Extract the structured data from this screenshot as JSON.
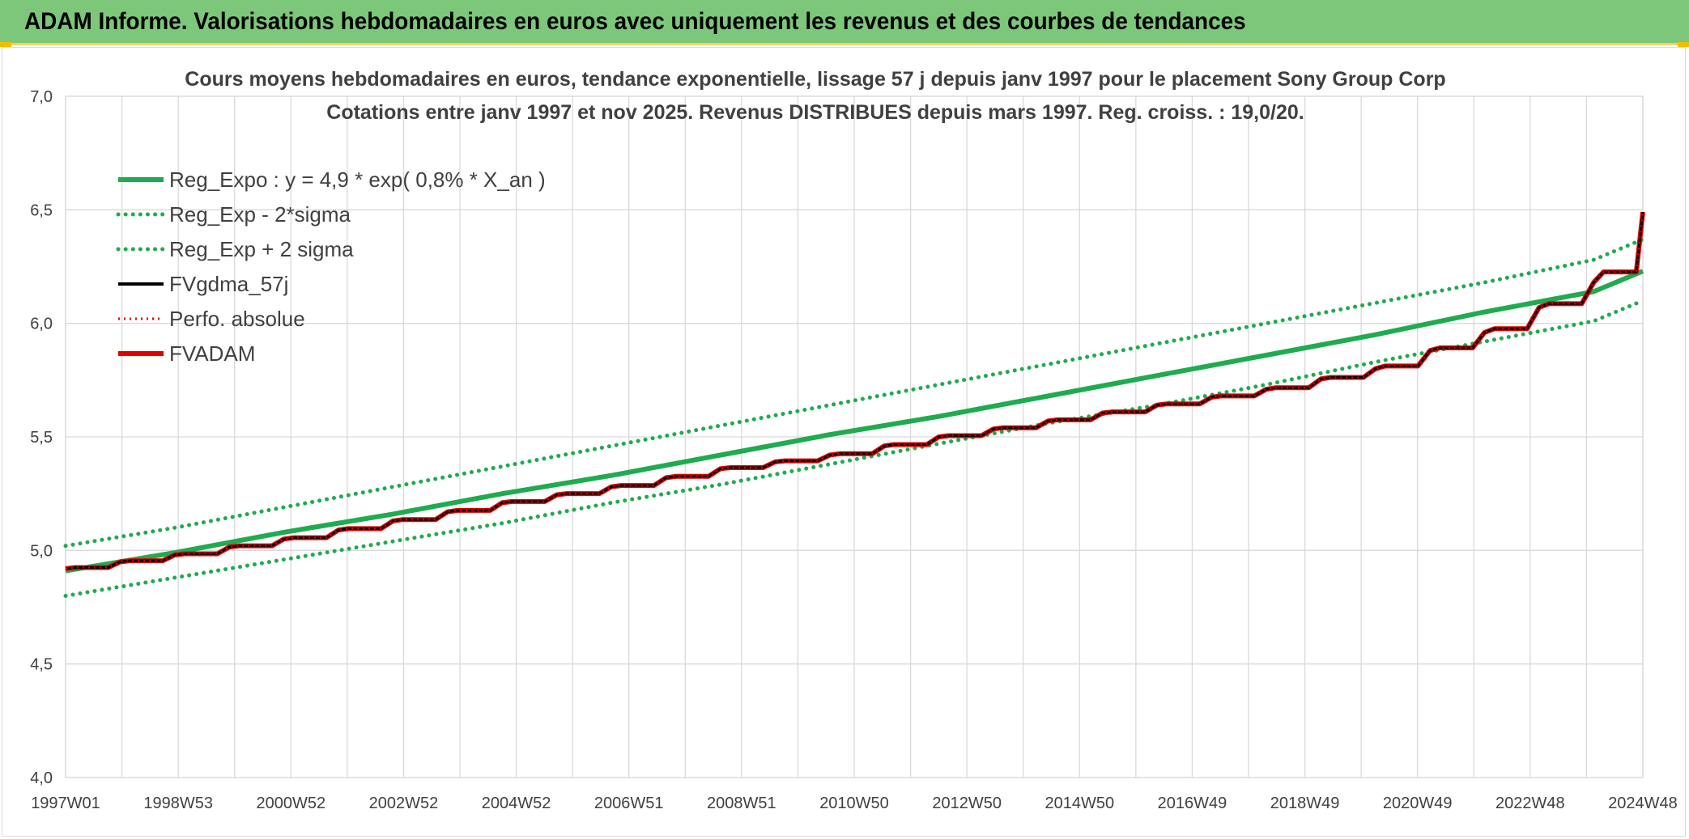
{
  "header": {
    "title": "ADAM Informe. Valorisations hebdomadaires en euros avec uniquement les revenus et des courbes de tendances",
    "background": "#7cc77a"
  },
  "chart_data": {
    "type": "line",
    "title_line1": "Cours moyens hebdomadaires en euros, tendance exponentielle, lissage 57 j depuis janv 1997 pour le placement Sony Group Corp",
    "title_line2": "Cotations entre janv 1997 et nov 2025. Revenus DISTRIBUES depuis mars 1997. Reg. croiss. : 19,0/20.",
    "x_tick_labels": [
      "1997W01",
      "1998W53",
      "2000W52",
      "2002W52",
      "2004W52",
      "2006W51",
      "2008W51",
      "2010W50",
      "2012W50",
      "2014W50",
      "2016W49",
      "2018W49",
      "2020W49",
      "2022W48",
      "2024W48"
    ],
    "x_range": [
      "1997W01",
      "2025W47"
    ],
    "ylim": [
      4.0,
      7.0
    ],
    "y_ticks": [
      4.0,
      4.5,
      5.0,
      5.5,
      6.0,
      6.5,
      7.0
    ],
    "y_tick_labels": [
      "4,0",
      "4,5",
      "5,0",
      "5,5",
      "6,0",
      "6,5",
      "7,0"
    ],
    "grid": true,
    "legend_position": "top-left",
    "x_years": [
      1997,
      1999,
      2001,
      2003,
      2005,
      2007,
      2009,
      2011,
      2013,
      2015,
      2017,
      2019,
      2021,
      2023,
      2025,
      2025.9
    ],
    "series": [
      {
        "name": "Reg_Expo : y = 4,9 * exp( 0,8% *  X_an )",
        "color": "#1fab4f",
        "style": "solid-thick",
        "values": [
          4.91,
          4.99,
          5.08,
          5.16,
          5.25,
          5.33,
          5.42,
          5.51,
          5.59,
          5.68,
          5.77,
          5.86,
          5.95,
          6.05,
          6.14,
          6.23
        ]
      },
      {
        "name": "Reg_Exp - 2*sigma",
        "color": "#1fab4f",
        "style": "dotted",
        "values": [
          4.8,
          4.88,
          4.96,
          5.04,
          5.12,
          5.21,
          5.29,
          5.38,
          5.47,
          5.56,
          5.64,
          5.73,
          5.83,
          5.92,
          6.01,
          6.1
        ]
      },
      {
        "name": "Reg_Exp + 2 sigma",
        "color": "#1fab4f",
        "style": "dotted",
        "values": [
          5.02,
          5.1,
          5.19,
          5.28,
          5.37,
          5.46,
          5.55,
          5.64,
          5.73,
          5.82,
          5.91,
          6.0,
          6.09,
          6.18,
          6.28,
          6.37
        ]
      },
      {
        "name": "FVgdma_57j",
        "color": "#000000",
        "style": "solid",
        "values": [
          4.92,
          4.98,
          5.05,
          5.13,
          5.21,
          5.28,
          5.36,
          5.42,
          5.5,
          5.57,
          5.64,
          5.71,
          5.8,
          5.96,
          6.18,
          6.49
        ]
      },
      {
        "name": "Perfo. absolue",
        "color": "#e00000",
        "style": "dotted",
        "values": [
          4.92,
          4.98,
          5.05,
          5.13,
          5.21,
          5.28,
          5.36,
          5.42,
          5.5,
          5.57,
          5.64,
          5.71,
          5.8,
          5.96,
          6.18,
          6.49
        ]
      },
      {
        "name": "FVADAM",
        "color": "#e00000",
        "style": "solid-thick",
        "values": [
          4.92,
          4.98,
          5.05,
          5.13,
          5.21,
          5.28,
          5.36,
          5.42,
          5.5,
          5.57,
          5.64,
          5.71,
          5.8,
          5.96,
          6.18,
          6.49
        ]
      }
    ]
  }
}
